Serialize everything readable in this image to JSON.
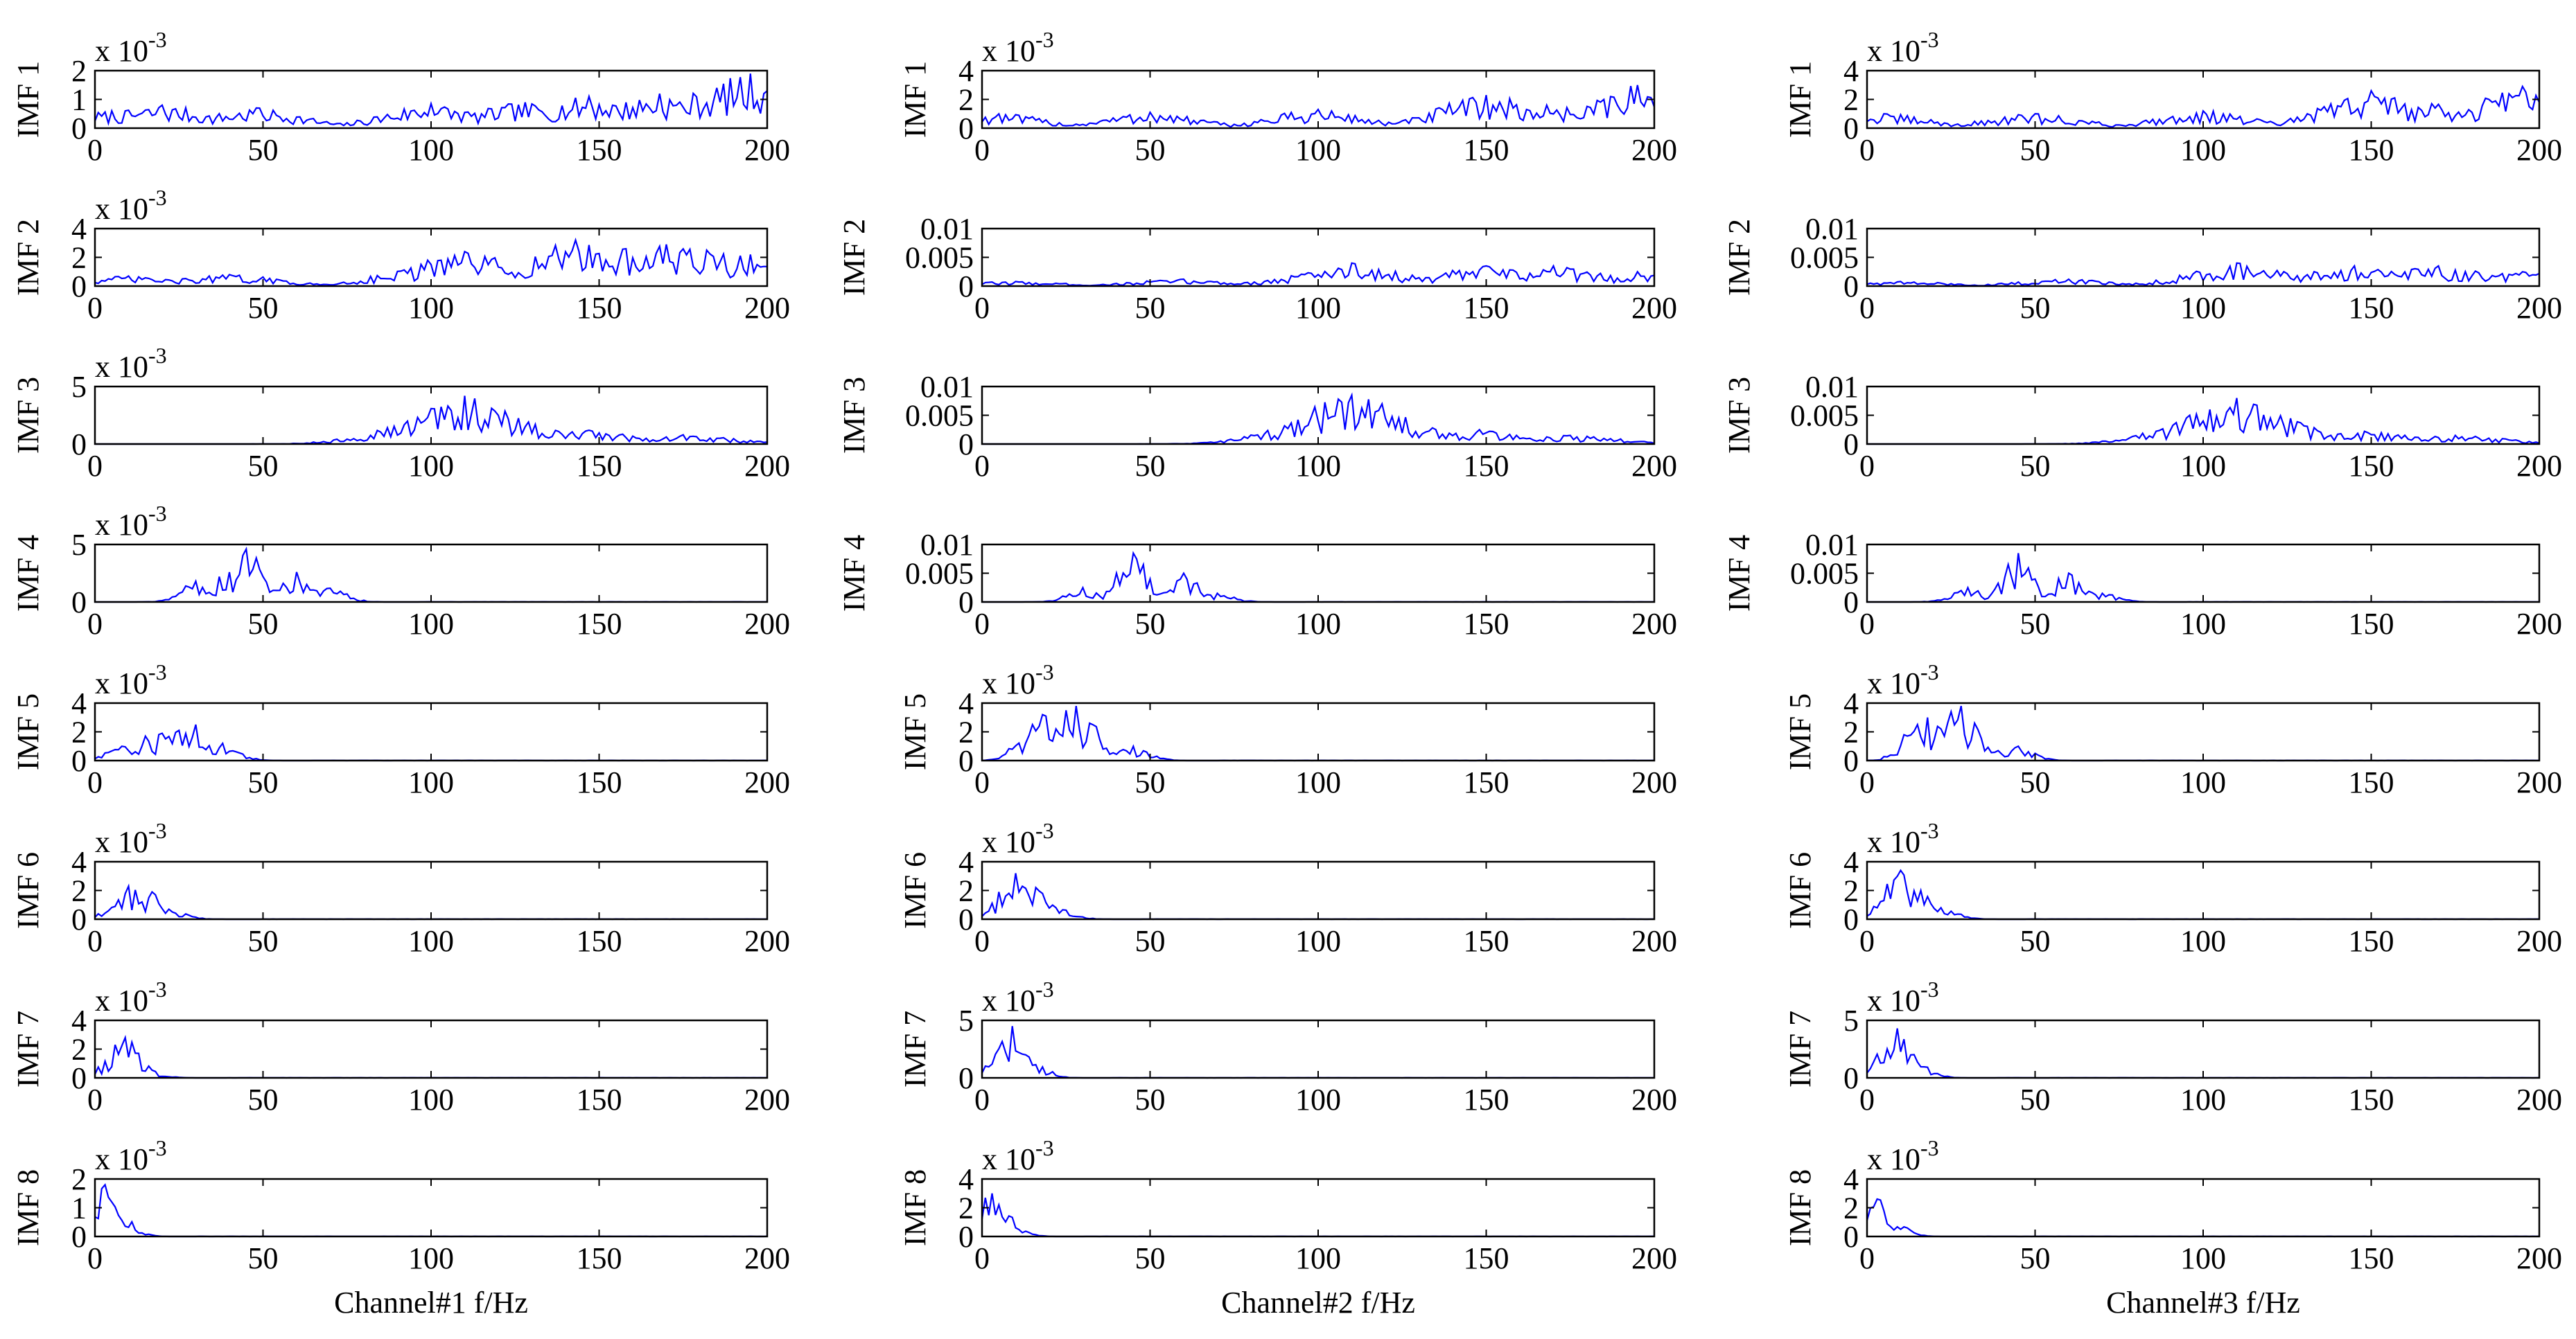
{
  "chart_data": {
    "type": "line",
    "line_color": "#0000ff",
    "x_ticks": [
      0,
      50,
      100,
      150,
      200
    ],
    "xlim": [
      0,
      200
    ],
    "grid": false,
    "columns": [
      {
        "xlabel": "Channel#1 f/Hz",
        "rows": [
          {
            "ylabel": "IMF 1",
            "exp_base": "x 10",
            "exp_power": "-3",
            "yticks": [
              "0",
              "1",
              "2"
            ],
            "ytick_values": [
              0,
              1,
              2
            ],
            "ylim": [
              0,
              2
            ],
            "peaks": [
              [
                5,
                0.6
              ],
              [
                20,
                0.8
              ],
              [
                48,
                0.7
              ],
              [
                100,
                0.85
              ],
              [
                128,
                0.9
              ],
              [
                147,
                1.1
              ],
              [
                168,
                1.2
              ],
              [
                185,
                1.4
              ],
              [
                195,
                1.9
              ],
              [
                200,
                1.3
              ]
            ]
          },
          {
            "ylabel": "IMF 2",
            "exp_base": "x 10",
            "exp_power": "-3",
            "yticks": [
              "0",
              "2",
              "4"
            ],
            "ytick_values": [
              0,
              2,
              4
            ],
            "ylim": [
              0,
              4
            ],
            "peaks": [
              [
                10,
                0.7
              ],
              [
                40,
                0.8
              ],
              [
                100,
                1.5
              ],
              [
                110,
                2.4
              ],
              [
                143,
                3.2
              ],
              [
                158,
                2.6
              ],
              [
                170,
                2.9
              ],
              [
                182,
                2.5
              ],
              [
                195,
                2.2
              ]
            ]
          },
          {
            "ylabel": "IMF 3",
            "exp_base": "x 10",
            "exp_power": "-3",
            "yticks": [
              "0",
              "5"
            ],
            "ytick_values": [
              0,
              5
            ],
            "ylim": [
              0,
              5
            ],
            "peaks": [
              [
                98,
                2.0
              ],
              [
                110,
                4.2
              ],
              [
                120,
                2.5
              ],
              [
                128,
                1.5
              ],
              [
                147,
                1.2
              ],
              [
                175,
                0.8
              ]
            ]
          },
          {
            "ylabel": "IMF 4",
            "exp_base": "x 10",
            "exp_power": "-3",
            "yticks": [
              "0",
              "5"
            ],
            "ytick_values": [
              0,
              5
            ],
            "ylim": [
              0,
              5
            ],
            "peaks": [
              [
                30,
                1.8
              ],
              [
                37,
                2.2
              ],
              [
                45,
                4.6
              ],
              [
                50,
                2.2
              ],
              [
                60,
                2.6
              ],
              [
                70,
                1.2
              ]
            ]
          },
          {
            "ylabel": "IMF 5",
            "exp_base": "x 10",
            "exp_power": "-3",
            "yticks": [
              "0",
              "2",
              "4"
            ],
            "ytick_values": [
              0,
              2,
              4
            ],
            "ylim": [
              0,
              4
            ],
            "peaks": [
              [
                8,
                1.0
              ],
              [
                15,
                1.7
              ],
              [
                20,
                1.9
              ],
              [
                25,
                2.1
              ],
              [
                30,
                2.5
              ],
              [
                38,
                1.2
              ]
            ]
          },
          {
            "ylabel": "IMF 6",
            "exp_base": "x 10",
            "exp_power": "-3",
            "yticks": [
              "0",
              "2",
              "4"
            ],
            "ytick_values": [
              0,
              2,
              4
            ],
            "ylim": [
              0,
              4
            ],
            "peaks": [
              [
                10,
                2.3
              ],
              [
                14,
                1.2
              ],
              [
                17,
                1.9
              ],
              [
                22,
                0.7
              ]
            ]
          },
          {
            "ylabel": "IMF 7",
            "exp_base": "x 10",
            "exp_power": "-3",
            "yticks": [
              "0",
              "2",
              "4"
            ],
            "ytick_values": [
              0,
              2,
              4
            ],
            "ylim": [
              0,
              4
            ],
            "peaks": [
              [
                9,
                2.8
              ],
              [
                14,
                0.5
              ]
            ]
          },
          {
            "ylabel": "IMF 8",
            "exp_base": "x 10",
            "exp_power": "-3",
            "yticks": [
              "0",
              "1",
              "2"
            ],
            "ytick_values": [
              0,
              1,
              2
            ],
            "ylim": [
              0,
              2
            ],
            "peaks": [
              [
                3,
                1.8
              ],
              [
                5,
                1.2
              ]
            ]
          }
        ]
      },
      {
        "xlabel": "Channel#2 f/Hz",
        "rows": [
          {
            "ylabel": "IMF 1",
            "exp_base": "x 10",
            "exp_power": "-3",
            "yticks": [
              "0",
              "2",
              "4"
            ],
            "ytick_values": [
              0,
              2,
              4
            ],
            "ylim": [
              0,
              4
            ],
            "peaks": [
              [
                5,
                1.0
              ],
              [
                50,
                1.1
              ],
              [
                100,
                1.3
              ],
              [
                150,
                2.3
              ],
              [
                168,
                1.6
              ],
              [
                185,
                2.0
              ],
              [
                195,
                3.0
              ]
            ]
          },
          {
            "ylabel": "IMF 2",
            "exp_base": "",
            "exp_power": "",
            "yticks": [
              "0",
              "0.005",
              "0.01"
            ],
            "ytick_values": [
              0,
              0.005,
              0.01
            ],
            "ylim": [
              0,
              0.01
            ],
            "peaks": [
              [
                10,
                0.0008
              ],
              [
                60,
                0.0012
              ],
              [
                100,
                0.002
              ],
              [
                110,
                0.004
              ],
              [
                150,
                0.0035
              ],
              [
                170,
                0.0035
              ],
              [
                195,
                0.0025
              ]
            ]
          },
          {
            "ylabel": "IMF 3",
            "exp_base": "",
            "exp_power": "",
            "yticks": [
              "0",
              "0.005",
              "0.01"
            ],
            "ytick_values": [
              0,
              0.005,
              0.01
            ],
            "ylim": [
              0,
              0.01
            ],
            "peaks": [
              [
                100,
                0.004
              ],
              [
                110,
                0.0085
              ],
              [
                120,
                0.0045
              ],
              [
                148,
                0.0025
              ],
              [
                175,
                0.0015
              ]
            ]
          },
          {
            "ylabel": "IMF 4",
            "exp_base": "",
            "exp_power": "",
            "yticks": [
              "0",
              "0.005",
              "0.01"
            ],
            "ytick_values": [
              0,
              0.005,
              0.01
            ],
            "ylim": [
              0,
              0.01
            ],
            "peaks": [
              [
                30,
                0.0025
              ],
              [
                45,
                0.0085
              ],
              [
                50,
                0.004
              ],
              [
                60,
                0.005
              ],
              [
                70,
                0.0015
              ]
            ]
          },
          {
            "ylabel": "IMF 5",
            "exp_base": "x 10",
            "exp_power": "-3",
            "yticks": [
              "0",
              "2",
              "4"
            ],
            "ytick_values": [
              0,
              2,
              4
            ],
            "ylim": [
              0,
              4
            ],
            "peaks": [
              [
                15,
                2.5
              ],
              [
                18,
                3.2
              ],
              [
                22,
                2.2
              ],
              [
                25,
                3.5
              ],
              [
                28,
                3.8
              ],
              [
                32,
                2.6
              ],
              [
                45,
                1.0
              ]
            ]
          },
          {
            "ylabel": "IMF 6",
            "exp_base": "x 10",
            "exp_power": "-3",
            "yticks": [
              "0",
              "2",
              "4"
            ],
            "ytick_values": [
              0,
              2,
              4
            ],
            "ylim": [
              0,
              4
            ],
            "peaks": [
              [
                10,
                3.2
              ],
              [
                16,
                2.2
              ],
              [
                22,
                0.8
              ]
            ]
          },
          {
            "ylabel": "IMF 7",
            "exp_base": "x 10",
            "exp_power": "-3",
            "yticks": [
              "0",
              "5"
            ],
            "ytick_values": [
              0,
              5
            ],
            "ylim": [
              0,
              5
            ],
            "peaks": [
              [
                9,
                4.5
              ],
              [
                13,
                2.0
              ]
            ]
          },
          {
            "ylabel": "IMF 8",
            "exp_base": "x 10",
            "exp_power": "-3",
            "yticks": [
              "0",
              "2",
              "4"
            ],
            "ytick_values": [
              0,
              2,
              4
            ],
            "ylim": [
              0,
              4
            ],
            "peaks": [
              [
                3,
                3.0
              ],
              [
                5,
                2.2
              ]
            ]
          }
        ]
      },
      {
        "xlabel": "Channel#3 f/Hz",
        "rows": [
          {
            "ylabel": "IMF 1",
            "exp_base": "x 10",
            "exp_power": "-3",
            "yticks": [
              "0",
              "2",
              "4"
            ],
            "ytick_values": [
              0,
              2,
              4
            ],
            "ylim": [
              0,
              4
            ],
            "peaks": [
              [
                5,
                1.0
              ],
              [
                50,
                1.0
              ],
              [
                100,
                1.2
              ],
              [
                150,
                2.6
              ],
              [
                168,
                1.7
              ],
              [
                185,
                2.0
              ],
              [
                195,
                2.9
              ]
            ]
          },
          {
            "ylabel": "IMF 2",
            "exp_base": "",
            "exp_power": "",
            "yticks": [
              "0",
              "0.005",
              "0.01"
            ],
            "ytick_values": [
              0,
              0.005,
              0.01
            ],
            "ylim": [
              0,
              0.01
            ],
            "peaks": [
              [
                10,
                0.0008
              ],
              [
                60,
                0.0012
              ],
              [
                110,
                0.004
              ],
              [
                145,
                0.0035
              ],
              [
                170,
                0.0035
              ],
              [
                195,
                0.0025
              ]
            ]
          },
          {
            "ylabel": "IMF 3",
            "exp_base": "",
            "exp_power": "",
            "yticks": [
              "0",
              "0.005",
              "0.01"
            ],
            "ytick_values": [
              0,
              0.005,
              0.01
            ],
            "ylim": [
              0,
              0.01
            ],
            "peaks": [
              [
                100,
                0.004
              ],
              [
                110,
                0.008
              ],
              [
                120,
                0.0045
              ],
              [
                148,
                0.0022
              ],
              [
                175,
                0.0015
              ]
            ]
          },
          {
            "ylabel": "IMF 4",
            "exp_base": "",
            "exp_power": "",
            "yticks": [
              "0",
              "0.005",
              "0.01"
            ],
            "ytick_values": [
              0,
              0.005,
              0.01
            ],
            "ylim": [
              0,
              0.01
            ],
            "peaks": [
              [
                30,
                0.0025
              ],
              [
                45,
                0.0085
              ],
              [
                50,
                0.004
              ],
              [
                60,
                0.005
              ],
              [
                70,
                0.0015
              ]
            ]
          },
          {
            "ylabel": "IMF 5",
            "exp_base": "x 10",
            "exp_power": "-3",
            "yticks": [
              "0",
              "2",
              "4"
            ],
            "ytick_values": [
              0,
              2,
              4
            ],
            "ylim": [
              0,
              4
            ],
            "peaks": [
              [
                15,
                2.5
              ],
              [
                18,
                3.0
              ],
              [
                22,
                2.2
              ],
              [
                25,
                3.4
              ],
              [
                28,
                3.8
              ],
              [
                32,
                2.6
              ],
              [
                45,
                1.0
              ]
            ]
          },
          {
            "ylabel": "IMF 6",
            "exp_base": "x 10",
            "exp_power": "-3",
            "yticks": [
              "0",
              "2",
              "4"
            ],
            "ytick_values": [
              0,
              2,
              4
            ],
            "ylim": [
              0,
              4
            ],
            "peaks": [
              [
                10,
                3.4
              ],
              [
                16,
                2.0
              ],
              [
                22,
                0.8
              ]
            ]
          },
          {
            "ylabel": "IMF 7",
            "exp_base": "x 10",
            "exp_power": "-3",
            "yticks": [
              "0",
              "5"
            ],
            "ytick_values": [
              0,
              5
            ],
            "ylim": [
              0,
              5
            ],
            "peaks": [
              [
                9,
                4.3
              ],
              [
                13,
                2.0
              ]
            ]
          },
          {
            "ylabel": "IMF 8",
            "exp_base": "x 10",
            "exp_power": "-3",
            "yticks": [
              "0",
              "2",
              "4"
            ],
            "ytick_values": [
              0,
              2,
              4
            ],
            "ylim": [
              0,
              4
            ],
            "peaks": [
              [
                3,
                2.6
              ],
              [
                5,
                1.8
              ]
            ]
          }
        ]
      }
    ]
  }
}
